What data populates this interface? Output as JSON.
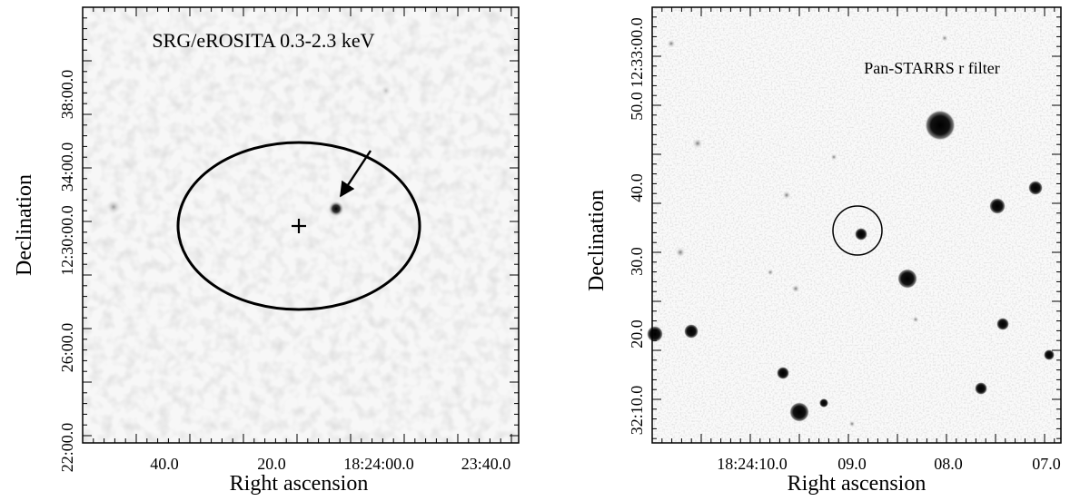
{
  "left_panel": {
    "title": "SRG/eROSITA 0.3-2.3 keV",
    "xlabel": "Right ascension",
    "ylabel": "Declination",
    "x_ticks": [
      "40.0",
      "20.0",
      "18:24:00.0",
      "23:40.0"
    ],
    "y_ticks": [
      "22:00.0",
      "26:00.0",
      "12:30:00.0",
      "34:00.0",
      "38:00.0"
    ]
  },
  "right_panel": {
    "title": "Pan-STARRS r filter",
    "xlabel": "Right ascension",
    "ylabel": "Declination",
    "x_ticks": [
      "18:24:10.0",
      "09.0",
      "08.0",
      "07.0"
    ],
    "y_ticks": [
      "32:10.0",
      "20.0",
      "30.0",
      "40.0",
      "50.0 12:33:00.0"
    ]
  },
  "colors": {
    "background": "#ffffff",
    "frame": "#000000",
    "image_bg": "#f6f6f6"
  }
}
